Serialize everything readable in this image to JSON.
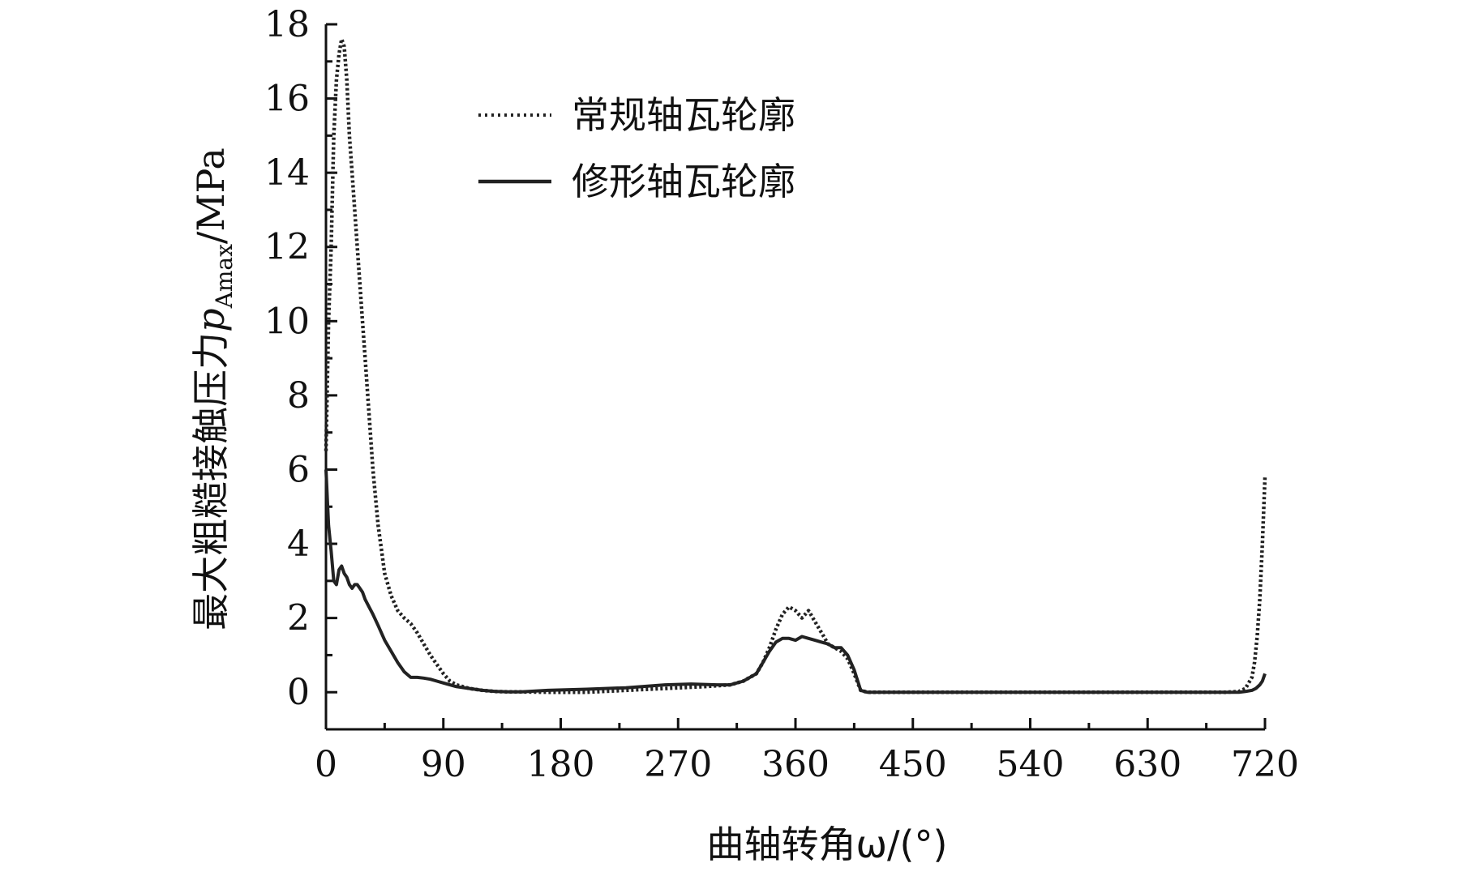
{
  "chart_data": {
    "type": "line",
    "xlabel": "曲轴转角ω/(°)",
    "ylabel_main": "最大粗糙接触压力",
    "ylabel_symbol": "p",
    "ylabel_subscript": "Amax",
    "ylabel_unit": "/MPa",
    "xlim": [
      0,
      720
    ],
    "ylim": [
      -1,
      18
    ],
    "x_ticks": [
      0,
      90,
      180,
      270,
      360,
      450,
      540,
      630,
      720
    ],
    "y_ticks": [
      0,
      2,
      4,
      6,
      8,
      10,
      12,
      14,
      16,
      18
    ],
    "legend_position": "top-center",
    "grid": false,
    "series": [
      {
        "name": "常规轴瓦轮廓",
        "style": "dotted",
        "x": [
          0,
          2,
          4,
          6,
          8,
          10,
          12,
          14,
          16,
          18,
          20,
          22,
          24,
          26,
          28,
          30,
          33,
          36,
          40,
          45,
          50,
          55,
          60,
          65,
          70,
          75,
          80,
          85,
          90,
          95,
          100,
          110,
          120,
          130,
          140,
          150,
          170,
          200,
          230,
          260,
          290,
          310,
          320,
          330,
          335,
          340,
          345,
          350,
          355,
          360,
          365,
          370,
          375,
          380,
          385,
          390,
          395,
          400,
          405,
          410,
          415,
          420,
          450,
          500,
          550,
          600,
          650,
          690,
          700,
          705,
          710,
          712,
          714,
          716,
          718,
          720
        ],
        "y": [
          6.5,
          10,
          12,
          15,
          16.5,
          17.2,
          17.6,
          17.4,
          16.5,
          15,
          14,
          13,
          12,
          11,
          10,
          9,
          7.5,
          6,
          4.5,
          3.2,
          2.6,
          2.2,
          2.0,
          1.85,
          1.6,
          1.3,
          1.0,
          0.75,
          0.5,
          0.3,
          0.2,
          0.1,
          0.05,
          0.02,
          0.01,
          0.01,
          0.0,
          0.0,
          0.05,
          0.1,
          0.15,
          0.2,
          0.3,
          0.5,
          0.8,
          1.2,
          1.7,
          2.1,
          2.3,
          2.2,
          2.0,
          2.2,
          1.9,
          1.6,
          1.3,
          1.2,
          1.1,
          0.9,
          0.5,
          0.05,
          0.0,
          0.0,
          0.0,
          0.0,
          0.0,
          0.0,
          0.0,
          0.0,
          0.02,
          0.1,
          0.4,
          0.8,
          1.5,
          2.5,
          4.0,
          5.8
        ]
      },
      {
        "name": "修形轴瓦轮廓",
        "style": "solid",
        "x": [
          0,
          2,
          4,
          6,
          8,
          10,
          12,
          14,
          16,
          18,
          20,
          22,
          24,
          26,
          28,
          30,
          33,
          36,
          40,
          45,
          50,
          55,
          60,
          65,
          70,
          75,
          80,
          85,
          90,
          95,
          100,
          110,
          120,
          130,
          140,
          150,
          170,
          200,
          230,
          260,
          280,
          300,
          310,
          320,
          330,
          335,
          340,
          345,
          350,
          355,
          360,
          365,
          370,
          375,
          380,
          385,
          390,
          395,
          400,
          405,
          410,
          415,
          420,
          450,
          500,
          550,
          600,
          650,
          690,
          700,
          705,
          710,
          713,
          716,
          718,
          720
        ],
        "y": [
          6.0,
          4.5,
          3.8,
          3.0,
          2.9,
          3.3,
          3.4,
          3.2,
          3.1,
          2.9,
          2.8,
          2.9,
          2.9,
          2.8,
          2.7,
          2.5,
          2.3,
          2.1,
          1.8,
          1.4,
          1.1,
          0.8,
          0.55,
          0.4,
          0.4,
          0.38,
          0.35,
          0.3,
          0.25,
          0.2,
          0.15,
          0.1,
          0.05,
          0.02,
          0.01,
          0.01,
          0.05,
          0.08,
          0.12,
          0.2,
          0.22,
          0.2,
          0.2,
          0.3,
          0.5,
          0.8,
          1.1,
          1.35,
          1.45,
          1.45,
          1.4,
          1.5,
          1.45,
          1.4,
          1.35,
          1.3,
          1.2,
          1.2,
          1.0,
          0.6,
          0.05,
          0.0,
          0.0,
          0.0,
          0.0,
          0.0,
          0.0,
          0.0,
          0.0,
          0.0,
          0.02,
          0.05,
          0.1,
          0.2,
          0.3,
          0.5
        ]
      }
    ]
  }
}
